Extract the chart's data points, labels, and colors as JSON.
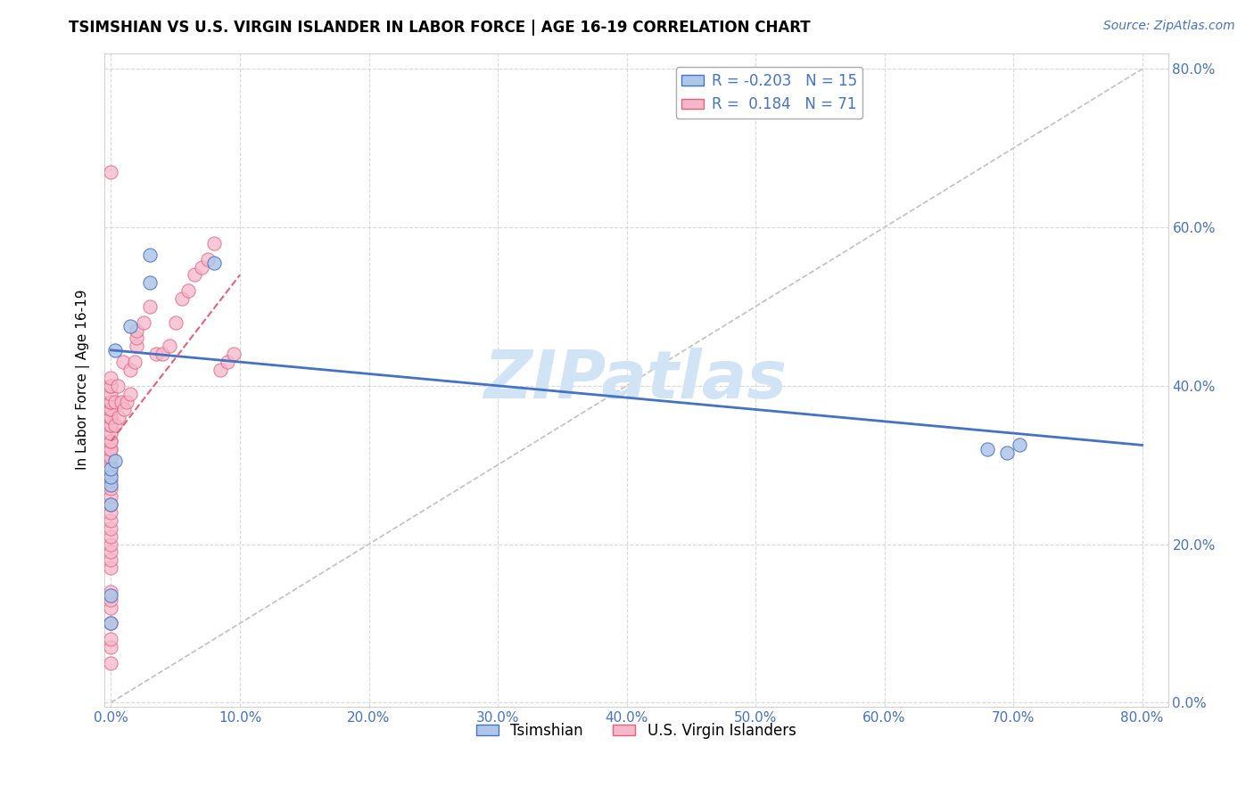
{
  "title": "TSIMSHIAN VS U.S. VIRGIN ISLANDER IN LABOR FORCE | AGE 16-19 CORRELATION CHART",
  "source": "Source: ZipAtlas.com",
  "ylabel": "In Labor Force | Age 16-19",
  "xlim": [
    -0.005,
    0.82
  ],
  "ylim": [
    -0.005,
    0.82
  ],
  "x_ticks": [
    0.0,
    0.1,
    0.2,
    0.3,
    0.4,
    0.5,
    0.6,
    0.7,
    0.8
  ],
  "y_ticks": [
    0.0,
    0.2,
    0.4,
    0.6,
    0.8
  ],
  "x_tick_labels": [
    "0.0%",
    "10.0%",
    "20.0%",
    "30.0%",
    "40.0%",
    "50.0%",
    "60.0%",
    "70.0%",
    "80.0%"
  ],
  "y_tick_labels": [
    "0.0%",
    "20.0%",
    "40.0%",
    "60.0%",
    "80.0%"
  ],
  "legend_label1": "Tsimshian",
  "legend_label2": "U.S. Virgin Islanders",
  "R1": -0.203,
  "N1": 15,
  "R2": 0.184,
  "N2": 71,
  "color1": "#aec6e8",
  "color2": "#f5b8cb",
  "line1_color": "#4472c4",
  "line2_color": "#e8607a",
  "watermark": "ZIPatlas",
  "watermark_color": "#d0e4f5",
  "tsimshian_x": [
    0.0,
    0.0,
    0.0,
    0.0,
    0.0,
    0.0,
    0.003,
    0.003,
    0.015,
    0.03,
    0.03,
    0.08,
    0.68,
    0.695,
    0.705
  ],
  "tsimshian_y": [
    0.1,
    0.135,
    0.25,
    0.275,
    0.285,
    0.295,
    0.305,
    0.445,
    0.475,
    0.53,
    0.565,
    0.555,
    0.32,
    0.315,
    0.325
  ],
  "virgin_x": [
    0.0,
    0.0,
    0.0,
    0.0,
    0.0,
    0.0,
    0.0,
    0.0,
    0.0,
    0.0,
    0.0,
    0.0,
    0.0,
    0.0,
    0.0,
    0.0,
    0.0,
    0.0,
    0.0,
    0.0,
    0.0,
    0.0,
    0.0,
    0.0,
    0.0,
    0.0,
    0.0,
    0.0,
    0.0,
    0.0,
    0.0,
    0.0,
    0.0,
    0.0,
    0.0,
    0.0,
    0.0,
    0.0,
    0.0,
    0.0,
    0.0,
    0.0,
    0.003,
    0.003,
    0.005,
    0.006,
    0.008,
    0.009,
    0.01,
    0.012,
    0.015,
    0.015,
    0.018,
    0.02,
    0.02,
    0.02,
    0.025,
    0.03,
    0.035,
    0.04,
    0.045,
    0.05,
    0.055,
    0.06,
    0.065,
    0.07,
    0.075,
    0.08,
    0.085,
    0.09,
    0.095
  ],
  "virgin_y": [
    0.05,
    0.07,
    0.08,
    0.1,
    0.12,
    0.13,
    0.14,
    0.17,
    0.18,
    0.19,
    0.2,
    0.21,
    0.22,
    0.23,
    0.24,
    0.25,
    0.26,
    0.27,
    0.28,
    0.29,
    0.3,
    0.3,
    0.31,
    0.31,
    0.32,
    0.32,
    0.33,
    0.33,
    0.34,
    0.35,
    0.35,
    0.36,
    0.36,
    0.37,
    0.37,
    0.38,
    0.38,
    0.39,
    0.4,
    0.4,
    0.41,
    0.67,
    0.35,
    0.38,
    0.4,
    0.36,
    0.38,
    0.43,
    0.37,
    0.38,
    0.39,
    0.42,
    0.43,
    0.45,
    0.46,
    0.47,
    0.48,
    0.5,
    0.44,
    0.44,
    0.45,
    0.48,
    0.51,
    0.52,
    0.54,
    0.55,
    0.56,
    0.58,
    0.42,
    0.43,
    0.44
  ],
  "tsim_line_x": [
    0.0,
    0.8
  ],
  "tsim_line_y": [
    0.445,
    0.325
  ],
  "virg_line_x": [
    0.0,
    0.1
  ],
  "virg_line_y": [
    0.33,
    0.54
  ]
}
